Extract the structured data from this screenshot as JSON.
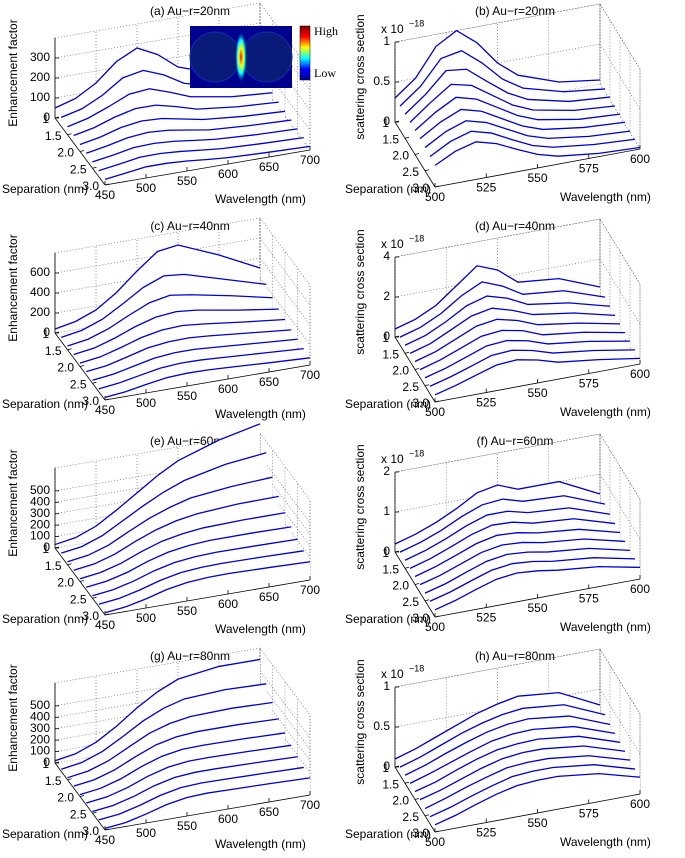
{
  "chart_data": [
    {
      "type": "waterfall",
      "title": "(a) Au−r=20nm",
      "xlabel": "Wavelength (nm)",
      "ylabel": "Separation (nm)",
      "zlabel": "Enhancement factor",
      "color": "#0000cc",
      "grid": true,
      "inset": {
        "high": "High",
        "low": "Low"
      },
      "xlim": [
        450,
        700
      ],
      "xticks": [
        450,
        500,
        550,
        600,
        650,
        700
      ],
      "ylim": [
        1,
        3
      ],
      "yticks": [
        1,
        1.5,
        {
          "value": 2,
          "label": "2.0"
        },
        2.5,
        {
          "value": 3,
          "label": "3.0"
        }
      ],
      "zlim": [
        0,
        400
      ],
      "zticks": [
        0,
        100,
        200,
        300
      ],
      "x": [
        450,
        475,
        500,
        525,
        550,
        575,
        600,
        650,
        700
      ],
      "y": [
        1,
        1.25,
        1.5,
        1.75,
        2,
        2.25,
        2.5,
        2.75,
        3
      ],
      "values": [
        [
          50,
          80,
          140,
          230,
          280,
          230,
          150,
          80,
          50
        ],
        [
          45,
          70,
          120,
          190,
          210,
          170,
          110,
          60,
          40
        ],
        [
          40,
          65,
          105,
          150,
          160,
          125,
          85,
          50,
          35
        ],
        [
          38,
          60,
          95,
          120,
          120,
          95,
          65,
          42,
          30
        ],
        [
          35,
          55,
          85,
          100,
          95,
          75,
          55,
          36,
          26
        ],
        [
          33,
          52,
          75,
          85,
          78,
          62,
          45,
          32,
          24
        ],
        [
          32,
          48,
          68,
          72,
          65,
          52,
          40,
          28,
          22
        ],
        [
          30,
          45,
          62,
          63,
          56,
          45,
          35,
          26,
          20
        ],
        [
          28,
          42,
          56,
          56,
          50,
          40,
          32,
          24,
          18
        ]
      ]
    },
    {
      "type": "waterfall",
      "title": "(b) Au−r=20nm",
      "xlabel": "Wavelength (nm)",
      "ylabel": "Separation (nm)",
      "zlabel": "scattering cross section",
      "zscale": {
        "base": "x 10",
        "exponent": "−18"
      },
      "color": "#0000cc",
      "grid": true,
      "xlim": [
        500,
        600
      ],
      "xticks": [
        500,
        525,
        550,
        575,
        600
      ],
      "ylim": [
        1,
        3
      ],
      "yticks": [
        1,
        1.5,
        {
          "value": 2,
          "label": "2.0"
        },
        2.5,
        {
          "value": 3,
          "label": "3.0"
        }
      ],
      "zlim": [
        0,
        1
      ],
      "zticks": [
        0,
        0.5,
        1
      ],
      "x": [
        500,
        510,
        520,
        530,
        540,
        550,
        560,
        580,
        600
      ],
      "y": [
        1,
        1.25,
        1.5,
        1.75,
        2,
        2.25,
        2.5,
        2.75,
        3
      ],
      "values": [
        [
          0.3,
          0.5,
          0.85,
          1.0,
          0.8,
          0.5,
          0.3,
          0.12,
          0.05
        ],
        [
          0.3,
          0.5,
          0.8,
          0.85,
          0.65,
          0.4,
          0.24,
          0.1,
          0.04
        ],
        [
          0.3,
          0.5,
          0.75,
          0.72,
          0.52,
          0.33,
          0.2,
          0.08,
          0.04
        ],
        [
          0.3,
          0.5,
          0.68,
          0.62,
          0.45,
          0.28,
          0.17,
          0.07,
          0.03
        ],
        [
          0.3,
          0.48,
          0.62,
          0.55,
          0.4,
          0.25,
          0.15,
          0.06,
          0.03
        ],
        [
          0.3,
          0.46,
          0.57,
          0.5,
          0.36,
          0.22,
          0.13,
          0.06,
          0.03
        ],
        [
          0.29,
          0.44,
          0.53,
          0.46,
          0.33,
          0.2,
          0.12,
          0.05,
          0.02
        ],
        [
          0.28,
          0.42,
          0.5,
          0.43,
          0.3,
          0.18,
          0.11,
          0.05,
          0.02
        ],
        [
          0.27,
          0.4,
          0.47,
          0.4,
          0.28,
          0.17,
          0.1,
          0.04,
          0.02
        ]
      ]
    },
    {
      "type": "waterfall",
      "title": "(c) Au−r=40nm",
      "xlabel": "Wavelength (nm)",
      "ylabel": "Separation (nm)",
      "zlabel": "Enhancement factor",
      "color": "#0000cc",
      "grid": true,
      "xlim": [
        450,
        700
      ],
      "xticks": [
        450,
        500,
        550,
        600,
        650,
        700
      ],
      "ylim": [
        1,
        3
      ],
      "yticks": [
        1,
        1.5,
        {
          "value": 2,
          "label": "2.0"
        },
        2.5,
        {
          "value": 3,
          "label": "3.0"
        }
      ],
      "zlim": [
        0,
        800
      ],
      "zticks": [
        0,
        200,
        400,
        600
      ],
      "x": [
        450,
        475,
        500,
        525,
        550,
        575,
        600,
        650,
        700
      ],
      "y": [
        1,
        1.25,
        1.5,
        1.75,
        2,
        2.25,
        2.5,
        2.75,
        3
      ],
      "values": [
        [
          40,
          80,
          160,
          300,
          480,
          640,
          670,
          500,
          300
        ],
        [
          40,
          75,
          150,
          270,
          400,
          480,
          460,
          340,
          220
        ],
        [
          38,
          70,
          140,
          240,
          330,
          370,
          340,
          260,
          170
        ],
        [
          36,
          66,
          130,
          210,
          270,
          290,
          270,
          200,
          140
        ],
        [
          34,
          62,
          120,
          185,
          225,
          235,
          215,
          165,
          120
        ],
        [
          32,
          58,
          110,
          165,
          190,
          195,
          180,
          140,
          100
        ],
        [
          30,
          55,
          100,
          145,
          165,
          165,
          150,
          120,
          90
        ],
        [
          28,
          52,
          92,
          130,
          145,
          142,
          130,
          105,
          80
        ],
        [
          26,
          48,
          85,
          118,
          128,
          125,
          115,
          92,
          72
        ]
      ]
    },
    {
      "type": "waterfall",
      "title": "(d) Au−r=40nm",
      "xlabel": "Wavelength (nm)",
      "ylabel": "Separation (nm)",
      "zlabel": "scattering cross section",
      "zscale": {
        "base": "x 10",
        "exponent": "−18"
      },
      "color": "#0000cc",
      "grid": true,
      "xlim": [
        500,
        600
      ],
      "xticks": [
        500,
        525,
        550,
        575,
        600
      ],
      "ylim": [
        1,
        3
      ],
      "yticks": [
        1,
        1.5,
        {
          "value": 2,
          "label": "2.0"
        },
        2.5,
        {
          "value": 3,
          "label": "3.0"
        }
      ],
      "zlim": [
        0,
        4
      ],
      "zticks": [
        0,
        2,
        4
      ],
      "x": [
        500,
        510,
        520,
        530,
        540,
        550,
        560,
        580,
        600
      ],
      "y": [
        1,
        1.25,
        1.5,
        1.75,
        2,
        2.25,
        2.5,
        2.75,
        3
      ],
      "values": [
        [
          0.4,
          0.7,
          1.2,
          2.0,
          2.8,
          2.4,
          1.6,
          1.4,
          0.6
        ],
        [
          0.4,
          0.7,
          1.2,
          1.9,
          2.4,
          2.0,
          1.4,
          1.2,
          0.5
        ],
        [
          0.4,
          0.7,
          1.2,
          1.8,
          2.1,
          1.8,
          1.3,
          1.0,
          0.45
        ],
        [
          0.4,
          0.7,
          1.2,
          1.7,
          1.9,
          1.6,
          1.2,
          0.9,
          0.4
        ],
        [
          0.4,
          0.7,
          1.15,
          1.6,
          1.75,
          1.5,
          1.1,
          0.8,
          0.38
        ],
        [
          0.4,
          0.7,
          1.1,
          1.5,
          1.6,
          1.4,
          1.0,
          0.75,
          0.35
        ],
        [
          0.4,
          0.68,
          1.05,
          1.42,
          1.5,
          1.3,
          0.95,
          0.7,
          0.33
        ],
        [
          0.38,
          0.66,
          1.0,
          1.35,
          1.42,
          1.22,
          0.9,
          0.65,
          0.3
        ],
        [
          0.36,
          0.63,
          0.96,
          1.28,
          1.35,
          1.15,
          0.85,
          0.6,
          0.28
        ]
      ]
    },
    {
      "type": "waterfall",
      "title": "(e) Au−r=60nm",
      "xlabel": "Wavelength (nm)",
      "ylabel": "Separation (nm)",
      "zlabel": "Enhancement factor",
      "color": "#0000cc",
      "grid": true,
      "xlim": [
        450,
        700
      ],
      "xticks": [
        450,
        500,
        550,
        600,
        650,
        700
      ],
      "ylim": [
        1,
        3
      ],
      "yticks": [
        1,
        1.5,
        {
          "value": 2,
          "label": "2.0"
        },
        2.5,
        {
          "value": 3,
          "label": "3.0"
        }
      ],
      "zlim": [
        0,
        700
      ],
      "zticks": [
        0,
        100,
        200,
        300,
        400,
        500
      ],
      "x": [
        450,
        475,
        500,
        525,
        550,
        575,
        600,
        650,
        700
      ],
      "y": [
        1,
        1.25,
        1.5,
        1.75,
        2,
        2.25,
        2.5,
        2.75,
        3
      ],
      "values": [
        [
          30,
          60,
          130,
          240,
          360,
          480,
          580,
          700,
          780
        ],
        [
          28,
          55,
          120,
          220,
          320,
          410,
          480,
          560,
          600
        ],
        [
          26,
          52,
          110,
          200,
          285,
          350,
          400,
          440,
          460
        ],
        [
          25,
          50,
          104,
          185,
          255,
          305,
          335,
          360,
          365
        ],
        [
          24,
          48,
          98,
          170,
          230,
          265,
          285,
          295,
          295
        ],
        [
          23,
          46,
          92,
          158,
          208,
          235,
          248,
          250,
          245
        ],
        [
          22,
          44,
          88,
          148,
          190,
          210,
          218,
          215,
          210
        ],
        [
          21,
          42,
          84,
          138,
          175,
          190,
          195,
          190,
          182
        ],
        [
          20,
          40,
          80,
          130,
          162,
          175,
          178,
          170,
          160
        ]
      ]
    },
    {
      "type": "waterfall",
      "title": "(f) Au−r=60nm",
      "xlabel": "Wavelength (nm)",
      "ylabel": "Separation (nm)",
      "zlabel": "scattering cross section",
      "zscale": {
        "base": "x 10",
        "exponent": "−18"
      },
      "color": "#0000cc",
      "grid": true,
      "xlim": [
        500,
        600
      ],
      "xticks": [
        500,
        525,
        550,
        575,
        600
      ],
      "ylim": [
        1,
        3
      ],
      "yticks": [
        1,
        1.5,
        {
          "value": 2,
          "label": "2.0"
        },
        2.5,
        {
          "value": 3,
          "label": "3.0"
        }
      ],
      "zlim": [
        0,
        2
      ],
      "zticks": [
        0,
        1,
        2
      ],
      "x": [
        500,
        510,
        520,
        530,
        540,
        550,
        560,
        580,
        600
      ],
      "y": [
        1,
        1.25,
        1.5,
        1.75,
        2,
        2.25,
        2.5,
        2.75,
        3
      ],
      "values": [
        [
          0.2,
          0.35,
          0.55,
          0.8,
          1.1,
          1.2,
          1.0,
          1.0,
          0.5
        ],
        [
          0.2,
          0.35,
          0.55,
          0.8,
          1.0,
          1.05,
          0.9,
          0.85,
          0.45
        ],
        [
          0.2,
          0.35,
          0.55,
          0.78,
          0.95,
          0.95,
          0.82,
          0.75,
          0.4
        ],
        [
          0.2,
          0.35,
          0.55,
          0.76,
          0.9,
          0.88,
          0.76,
          0.68,
          0.37
        ],
        [
          0.2,
          0.35,
          0.54,
          0.74,
          0.85,
          0.82,
          0.72,
          0.62,
          0.35
        ],
        [
          0.2,
          0.34,
          0.53,
          0.72,
          0.81,
          0.78,
          0.68,
          0.58,
          0.33
        ],
        [
          0.19,
          0.33,
          0.52,
          0.7,
          0.78,
          0.74,
          0.65,
          0.55,
          0.31
        ],
        [
          0.19,
          0.33,
          0.51,
          0.68,
          0.75,
          0.71,
          0.62,
          0.52,
          0.3
        ],
        [
          0.18,
          0.32,
          0.5,
          0.66,
          0.72,
          0.68,
          0.6,
          0.5,
          0.29
        ]
      ]
    },
    {
      "type": "waterfall",
      "title": "(g) Au−r=80nm",
      "xlabel": "Wavelength (nm)",
      "ylabel": "Separation (nm)",
      "zlabel": "Enhancement factor",
      "color": "#0000cc",
      "grid": true,
      "xlim": [
        450,
        700
      ],
      "xticks": [
        450,
        500,
        550,
        600,
        650,
        700
      ],
      "ylim": [
        1,
        3
      ],
      "yticks": [
        1,
        1.5,
        {
          "value": 2,
          "label": "2.0"
        },
        2.5,
        {
          "value": 3,
          "label": "3.0"
        }
      ],
      "zlim": [
        0,
        700
      ],
      "zticks": [
        0,
        100,
        200,
        300,
        400,
        500
      ],
      "x": [
        450,
        475,
        500,
        525,
        550,
        575,
        600,
        650,
        700
      ],
      "y": [
        1,
        1.25,
        1.5,
        1.75,
        2,
        2.25,
        2.5,
        2.75,
        3
      ],
      "values": [
        [
          20,
          50,
          120,
          230,
          360,
          470,
          550,
          600,
          600
        ],
        [
          19,
          47,
          112,
          212,
          320,
          400,
          450,
          470,
          460
        ],
        [
          18,
          45,
          105,
          196,
          285,
          340,
          370,
          380,
          370
        ],
        [
          17,
          43,
          99,
          182,
          255,
          295,
          310,
          310,
          300
        ],
        [
          16,
          41,
          94,
          170,
          230,
          260,
          265,
          260,
          250
        ],
        [
          16,
          39,
          89,
          158,
          208,
          230,
          232,
          225,
          215
        ],
        [
          15,
          37,
          85,
          148,
          190,
          205,
          205,
          198,
          188
        ],
        [
          15,
          35,
          81,
          138,
          175,
          185,
          183,
          176,
          168
        ],
        [
          14,
          34,
          78,
          130,
          162,
          170,
          166,
          160,
          150
        ]
      ]
    },
    {
      "type": "waterfall",
      "title": "(h) Au−r=80nm",
      "xlabel": "Wavelength (nm)",
      "ylabel": "Separation (nm)",
      "zlabel": "scattering cross section",
      "zscale": {
        "base": "x 10",
        "exponent": "−18"
      },
      "color": "#0000cc",
      "grid": true,
      "xlim": [
        500,
        600
      ],
      "xticks": [
        500,
        525,
        550,
        575,
        600
      ],
      "ylim": [
        1,
        3
      ],
      "yticks": [
        1,
        1.5,
        {
          "value": 2,
          "label": "2.0"
        },
        2.5,
        {
          "value": 3,
          "label": "3.0"
        }
      ],
      "zlim": [
        0,
        1
      ],
      "zticks": [
        0,
        0.5,
        1
      ],
      "x": [
        500,
        510,
        520,
        530,
        540,
        550,
        560,
        580,
        600
      ],
      "y": [
        1,
        1.25,
        1.5,
        1.75,
        2,
        2.25,
        2.5,
        2.75,
        3
      ],
      "values": [
        [
          0.1,
          0.18,
          0.28,
          0.38,
          0.48,
          0.55,
          0.6,
          0.55,
          0.3
        ],
        [
          0.1,
          0.18,
          0.28,
          0.38,
          0.46,
          0.52,
          0.55,
          0.5,
          0.28
        ],
        [
          0.1,
          0.18,
          0.28,
          0.37,
          0.45,
          0.5,
          0.52,
          0.46,
          0.26
        ],
        [
          0.1,
          0.18,
          0.27,
          0.36,
          0.44,
          0.48,
          0.49,
          0.43,
          0.25
        ],
        [
          0.1,
          0.17,
          0.27,
          0.36,
          0.43,
          0.46,
          0.47,
          0.41,
          0.24
        ],
        [
          0.1,
          0.17,
          0.26,
          0.35,
          0.42,
          0.45,
          0.45,
          0.39,
          0.23
        ],
        [
          0.09,
          0.17,
          0.26,
          0.34,
          0.41,
          0.43,
          0.43,
          0.37,
          0.22
        ],
        [
          0.09,
          0.16,
          0.25,
          0.33,
          0.4,
          0.42,
          0.42,
          0.36,
          0.21
        ],
        [
          0.09,
          0.16,
          0.25,
          0.33,
          0.39,
          0.41,
          0.41,
          0.35,
          0.21
        ]
      ]
    }
  ]
}
